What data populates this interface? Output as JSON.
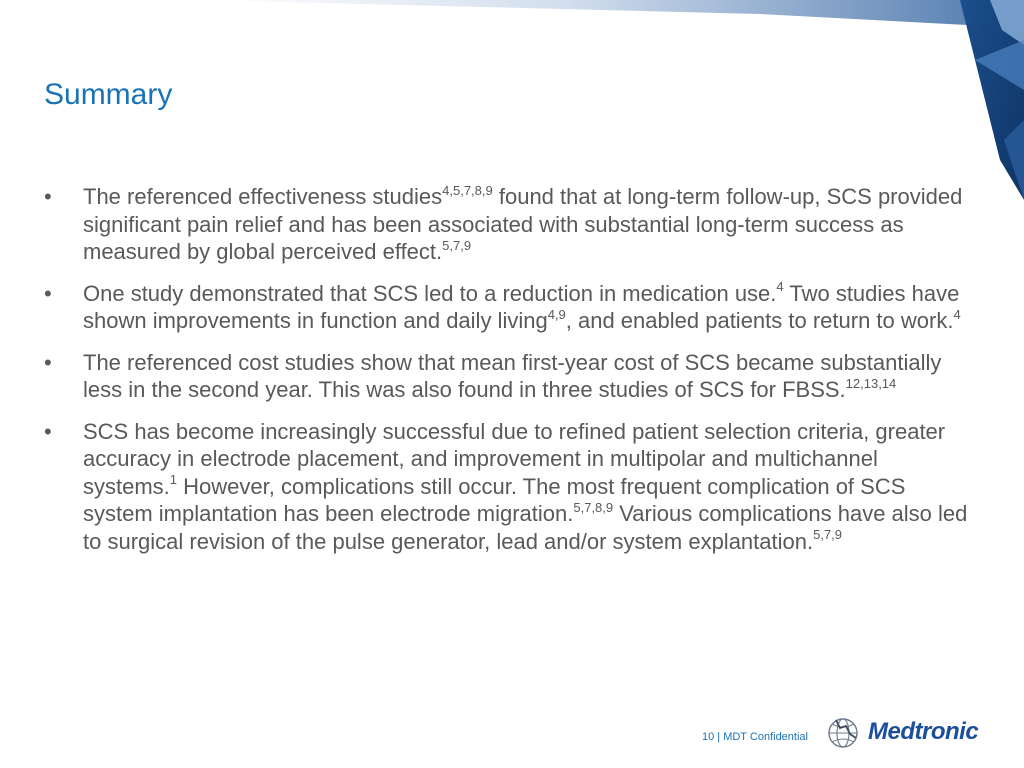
{
  "title": "Summary",
  "bullets": [
    {
      "parts": [
        {
          "t": "The referenced effectiveness studies"
        },
        {
          "sup": "4,5,7,8,9"
        },
        {
          "t": " found that at long-term follow-up, SCS provided significant pain relief and has been associated with substantial long-term success as measured by global perceived effect."
        },
        {
          "sup": "5,7,9"
        }
      ]
    },
    {
      "parts": [
        {
          "t": "One study demonstrated that SCS led to a reduction in medication use."
        },
        {
          "sup": "4"
        },
        {
          "t": " Two studies have shown improvements in function and daily living"
        },
        {
          "sup": "4,9"
        },
        {
          "t": ", and enabled patients to return to work."
        },
        {
          "sup": "4"
        }
      ]
    },
    {
      "parts": [
        {
          "t": "The referenced cost studies show that mean first-year cost of SCS became substantially less in the second year. This was also found in three studies of SCS for FBSS."
        },
        {
          "sup": "12,13,14"
        }
      ]
    },
    {
      "parts": [
        {
          "t": "SCS has become increasingly successful due to refined patient selection criteria, greater accuracy in electrode placement, and improvement in multipolar and multichannel systems."
        },
        {
          "sup": "1"
        },
        {
          "t": " However, complications still occur. The most frequent complication of SCS system implantation has been electrode migration."
        },
        {
          "sup": "5,7,8,9"
        },
        {
          "t": " Various complications have also led to surgical revision of the pulse generator, lead and/or system explantation."
        },
        {
          "sup": "5,7,9"
        }
      ]
    }
  ],
  "bullet_symbol": "•",
  "footer": {
    "text": "10 | MDT Confidential"
  },
  "logo": {
    "wordmark": "Medtronic",
    "icon": "medtronic-globe-icon"
  },
  "colors": {
    "title": "#1a73b5",
    "body_text": "#595959",
    "accent_dark": "#0d3d7a",
    "accent_light": "#2f6fb8",
    "logo": "#1b4f9c"
  }
}
